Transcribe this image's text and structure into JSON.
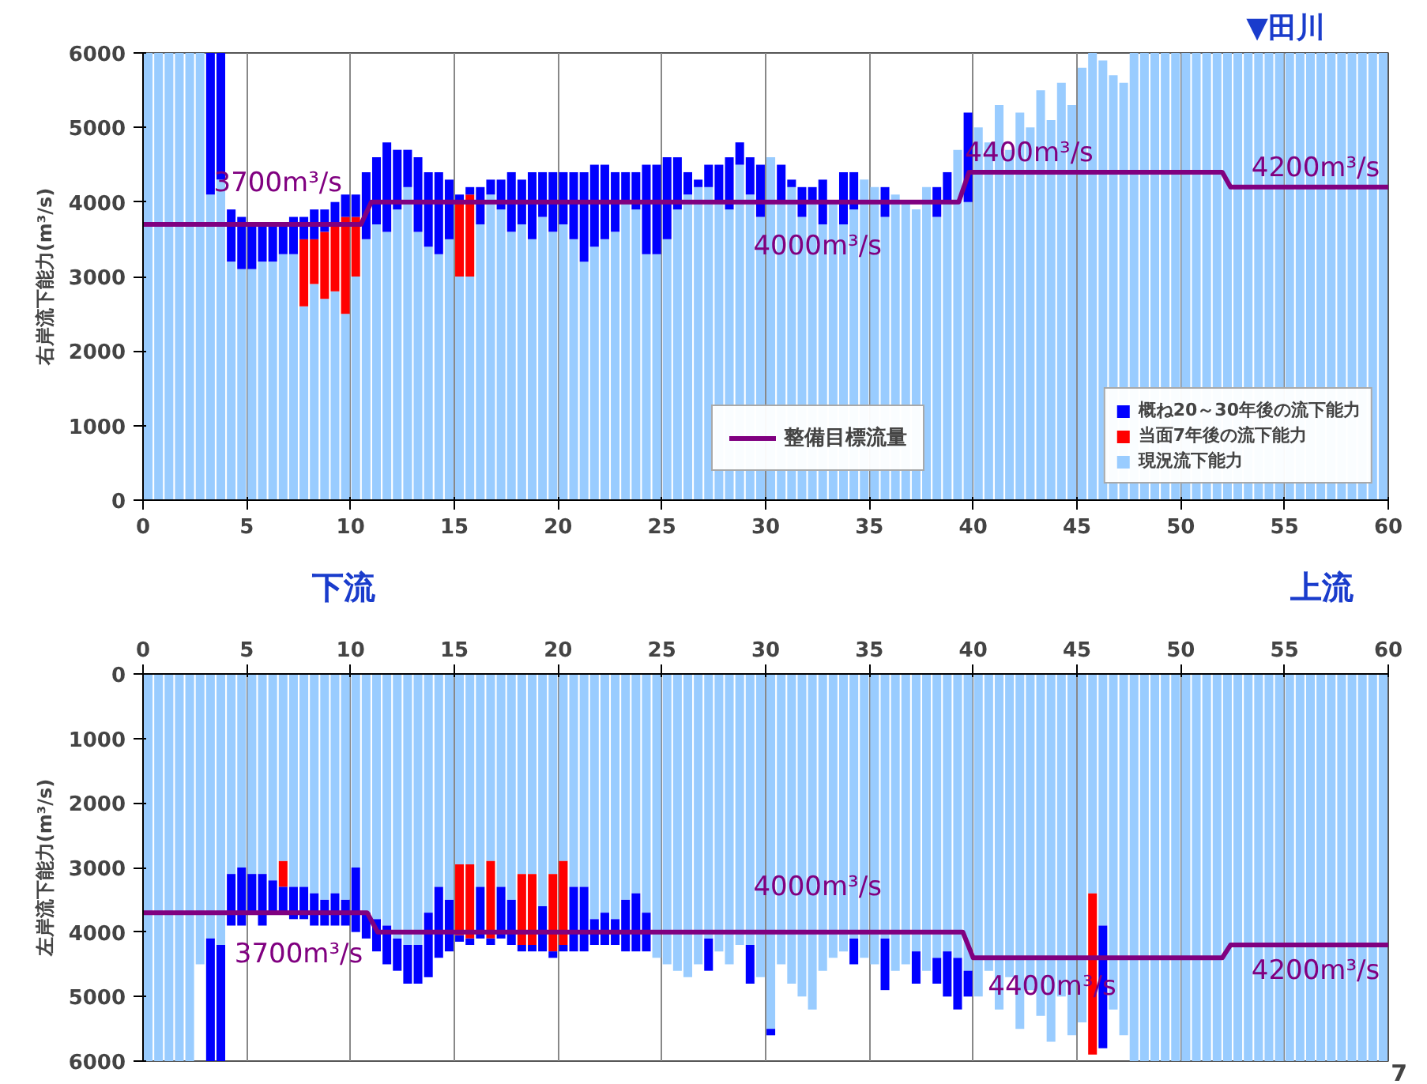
{
  "chart_data": [
    {
      "type": "bar",
      "stacked": true,
      "ylabel": "右岸流下能力(m³/s)",
      "x": [
        0.25,
        0.75,
        1.25,
        1.75,
        2.25,
        2.75,
        3.25,
        3.75,
        4.25,
        4.75,
        5.25,
        5.75,
        6.25,
        6.75,
        7.25,
        7.75,
        8.25,
        8.75,
        9.25,
        9.75,
        10.25,
        10.75,
        11.25,
        11.75,
        12.25,
        12.75,
        13.25,
        13.75,
        14.25,
        14.75,
        15.25,
        15.75,
        16.25,
        16.75,
        17.25,
        17.75,
        18.25,
        18.75,
        19.25,
        19.75,
        20.25,
        20.75,
        21.25,
        21.75,
        22.25,
        22.75,
        23.25,
        23.75,
        24.25,
        24.75,
        25.25,
        25.75,
        26.25,
        26.75,
        27.25,
        27.75,
        28.25,
        28.75,
        29.25,
        29.75,
        30.25,
        30.75,
        31.25,
        31.75,
        32.25,
        32.75,
        33.25,
        33.75,
        34.25,
        34.75,
        35.25,
        35.75,
        36.25,
        36.75,
        37.25,
        37.75,
        38.25,
        38.75,
        39.25,
        39.75,
        40.25,
        40.75,
        41.25,
        41.75,
        42.25,
        42.75,
        43.25,
        43.75,
        44.25,
        44.75,
        45.25,
        45.75,
        46.25,
        46.75,
        47.25,
        47.75,
        48.25,
        48.75,
        49.25,
        49.75,
        50.25,
        50.75,
        51.25,
        51.75,
        52.25,
        52.75,
        53.25,
        53.75,
        54.25,
        54.75,
        55.25,
        55.75,
        56.25,
        56.75,
        57.25,
        57.75,
        58.25,
        58.75,
        59.25,
        59.75
      ],
      "series": [
        {
          "name": "現況流下能力",
          "color": "#99ccff",
          "values": [
            6000,
            6000,
            6000,
            6000,
            6000,
            6000,
            4100,
            4300,
            3200,
            3100,
            3100,
            3200,
            3200,
            3300,
            3300,
            2600,
            2900,
            2700,
            2800,
            2500,
            3000,
            3500,
            3700,
            3600,
            3900,
            4200,
            3600,
            3400,
            3300,
            3500,
            3000,
            3000,
            3700,
            4100,
            3900,
            3600,
            3700,
            3500,
            3800,
            3600,
            3700,
            3500,
            3200,
            3400,
            3500,
            3600,
            4000,
            3900,
            3300,
            3300,
            3500,
            3900,
            4100,
            4200,
            4200,
            4000,
            3900,
            4500,
            4100,
            3800,
            4600,
            4000,
            4200,
            3800,
            4000,
            3700,
            4000,
            3700,
            3900,
            4300,
            4200,
            3800,
            4100,
            4000,
            3900,
            4200,
            3800,
            4000,
            4700,
            4000,
            5000,
            4800,
            5300,
            4700,
            5200,
            5000,
            5500,
            5100,
            5600,
            5300,
            5800,
            6000,
            5900,
            5700,
            5600,
            6000,
            6000,
            6000,
            6000,
            6000,
            6000,
            6000,
            6000,
            6000,
            6000,
            6000,
            6000,
            6000,
            6000,
            6000,
            6000,
            6000,
            6000,
            6000,
            6000,
            6000,
            6000,
            6000,
            6000,
            6000
          ]
        },
        {
          "name": "当面7年後の流下能力",
          "color": "#ff0000",
          "values": [
            0,
            0,
            0,
            0,
            0,
            0,
            0,
            0,
            0,
            0,
            0,
            0,
            0,
            0,
            0,
            900,
            600,
            900,
            900,
            1300,
            800,
            0,
            0,
            0,
            0,
            0,
            0,
            0,
            0,
            0,
            1000,
            1100,
            0,
            0,
            0,
            0,
            0,
            0,
            0,
            0,
            0,
            0,
            0,
            0,
            0,
            0,
            0,
            0,
            0,
            0,
            0,
            0,
            0,
            0,
            0,
            0,
            0,
            0,
            0,
            0,
            0,
            0,
            0,
            0,
            0,
            0,
            0,
            0,
            0,
            0,
            0,
            0,
            0,
            0,
            0,
            0,
            0,
            0,
            0,
            0,
            0,
            0,
            0,
            0,
            0,
            0,
            0,
            0,
            0,
            0,
            0,
            0,
            0,
            0,
            0,
            0,
            0,
            0,
            0,
            0,
            0,
            0,
            0,
            0,
            0,
            0,
            0,
            0,
            0,
            0,
            0,
            0,
            0,
            0,
            0,
            0,
            0,
            0,
            0,
            0
          ]
        },
        {
          "name": "概ね20～30年後の流下能力",
          "color": "#0000ff",
          "values": [
            0,
            0,
            0,
            0,
            0,
            0,
            1900,
            1700,
            700,
            700,
            600,
            500,
            500,
            400,
            500,
            300,
            400,
            300,
            300,
            300,
            300,
            900,
            900,
            1200,
            800,
            500,
            1000,
            1000,
            1100,
            800,
            100,
            100,
            500,
            200,
            400,
            800,
            600,
            900,
            600,
            800,
            700,
            900,
            1200,
            1100,
            1000,
            800,
            400,
            500,
            1200,
            1200,
            1100,
            700,
            300,
            100,
            300,
            500,
            700,
            300,
            500,
            700,
            0,
            500,
            100,
            400,
            200,
            600,
            0,
            700,
            500,
            0,
            0,
            400,
            0,
            0,
            0,
            0,
            400,
            400,
            0,
            1200,
            0,
            0,
            0,
            0,
            0,
            0,
            0,
            0,
            0,
            0,
            0,
            0,
            0,
            0,
            0,
            0,
            0,
            0,
            0,
            0,
            0,
            0,
            0,
            0,
            0,
            0,
            0,
            0,
            0,
            0,
            0,
            0,
            0,
            0,
            0,
            0,
            0,
            0,
            0,
            0
          ]
        },
        {
          "name": "整備目標流量",
          "type": "line",
          "color": "#800080",
          "x": [
            0,
            10.5,
            11,
            39.3,
            39.8,
            52,
            52.4,
            60
          ],
          "values": [
            3700,
            3700,
            4000,
            4000,
            4400,
            4400,
            4200,
            4200
          ]
        }
      ],
      "xlim": [
        0,
        60
      ],
      "ylim": [
        0,
        6000
      ],
      "xticks": [
        0,
        5,
        10,
        15,
        20,
        25,
        30,
        35,
        40,
        45,
        50,
        55,
        60
      ],
      "yticks": [
        0,
        1000,
        2000,
        3000,
        4000,
        5000,
        6000
      ],
      "grid": "x",
      "legend": "bottom right",
      "annotations": [
        "3700m³/s",
        "4000m³/s",
        "4400m³/s",
        "4200m³/s",
        "▼田川",
        "下流",
        "上流"
      ]
    },
    {
      "type": "bar",
      "stacked": true,
      "ylabel": "左岸流下能力(m³/s)",
      "x": [
        0.25,
        0.75,
        1.25,
        1.75,
        2.25,
        2.75,
        3.25,
        3.75,
        4.25,
        4.75,
        5.25,
        5.75,
        6.25,
        6.75,
        7.25,
        7.75,
        8.25,
        8.75,
        9.25,
        9.75,
        10.25,
        10.75,
        11.25,
        11.75,
        12.25,
        12.75,
        13.25,
        13.75,
        14.25,
        14.75,
        15.25,
        15.75,
        16.25,
        16.75,
        17.25,
        17.75,
        18.25,
        18.75,
        19.25,
        19.75,
        20.25,
        20.75,
        21.25,
        21.75,
        22.25,
        22.75,
        23.25,
        23.75,
        24.25,
        24.75,
        25.25,
        25.75,
        26.25,
        26.75,
        27.25,
        27.75,
        28.25,
        28.75,
        29.25,
        29.75,
        30.25,
        30.75,
        31.25,
        31.75,
        32.25,
        32.75,
        33.25,
        33.75,
        34.25,
        34.75,
        35.25,
        35.75,
        36.25,
        36.75,
        37.25,
        37.75,
        38.25,
        38.75,
        39.25,
        39.75,
        40.25,
        40.75,
        41.25,
        41.75,
        42.25,
        42.75,
        43.25,
        43.75,
        44.25,
        44.75,
        45.25,
        45.75,
        46.25,
        46.75,
        47.25,
        47.75,
        48.25,
        48.75,
        49.25,
        49.75,
        50.25,
        50.75,
        51.25,
        51.75,
        52.25,
        52.75,
        53.25,
        53.75,
        54.25,
        54.75,
        55.25,
        55.75,
        56.25,
        56.75,
        57.25,
        57.75,
        58.25,
        58.75,
        59.25,
        59.75
      ],
      "series": [
        {
          "color": "#99ccff",
          "values": [
            6000,
            6000,
            6000,
            6000,
            6000,
            4500,
            4100,
            4200,
            3100,
            3000,
            3100,
            3100,
            3200,
            2900,
            3300,
            3300,
            3400,
            3500,
            3400,
            3500,
            3000,
            3700,
            3800,
            3900,
            4100,
            4200,
            4200,
            3700,
            3300,
            3500,
            2950,
            2950,
            3300,
            2900,
            3300,
            3500,
            3100,
            3100,
            3600,
            3100,
            2900,
            3300,
            3300,
            3800,
            3700,
            3800,
            3500,
            3400,
            3700,
            4400,
            4500,
            4600,
            4700,
            4500,
            4100,
            4300,
            4500,
            4200,
            4200,
            4700,
            5500,
            4500,
            4800,
            5000,
            5200,
            4600,
            4400,
            4300,
            4100,
            4400,
            4500,
            4100,
            4600,
            4500,
            4300,
            4600,
            4400,
            4300,
            4400,
            4600,
            5000,
            4600,
            5200,
            4700,
            5500,
            4900,
            5300,
            5700,
            5000,
            5600,
            5400,
            3400,
            3900,
            5200,
            5600,
            6000,
            6000,
            6000,
            6000,
            6000,
            6000,
            6000,
            6000,
            6000,
            6000,
            6000,
            6000,
            6000,
            6000,
            6000,
            6000,
            6000,
            6000,
            6000,
            6000,
            6000,
            6000,
            6000,
            6000,
            6000
          ]
        },
        {
          "color": "#ff0000",
          "values": [
            0,
            0,
            0,
            0,
            0,
            0,
            0,
            0,
            0,
            0,
            0,
            0,
            0,
            400,
            0,
            0,
            0,
            0,
            0,
            0,
            0,
            0,
            0,
            0,
            0,
            0,
            0,
            0,
            0,
            0,
            1100,
            1150,
            0,
            1200,
            0,
            0,
            1100,
            1100,
            0,
            1200,
            1300,
            0,
            0,
            0,
            0,
            0,
            0,
            0,
            0,
            0,
            0,
            0,
            0,
            0,
            0,
            0,
            0,
            0,
            0,
            0,
            0,
            0,
            0,
            0,
            0,
            0,
            0,
            0,
            0,
            0,
            0,
            0,
            0,
            0,
            0,
            0,
            0,
            0,
            0,
            0,
            0,
            0,
            0,
            0,
            0,
            0,
            0,
            0,
            0,
            0,
            0,
            2500,
            0,
            0,
            0,
            0,
            0,
            0,
            0,
            0,
            0,
            0,
            0,
            0,
            0,
            0,
            0,
            0,
            0,
            0,
            0,
            0,
            0,
            0,
            0,
            0,
            0,
            0,
            0,
            0
          ]
        },
        {
          "color": "#0000ff",
          "values": [
            0,
            0,
            0,
            0,
            0,
            0,
            1900,
            1800,
            800,
            900,
            600,
            800,
            500,
            400,
            500,
            500,
            500,
            400,
            500,
            400,
            1000,
            400,
            500,
            600,
            500,
            600,
            600,
            1000,
            1100,
            800,
            100,
            100,
            800,
            100,
            800,
            700,
            100,
            100,
            700,
            100,
            100,
            1000,
            1000,
            400,
            500,
            400,
            800,
            900,
            600,
            0,
            0,
            0,
            0,
            0,
            500,
            0,
            0,
            0,
            600,
            0,
            100,
            0,
            0,
            0,
            0,
            0,
            0,
            0,
            400,
            0,
            0,
            800,
            0,
            0,
            500,
            0,
            400,
            700,
            800,
            400,
            0,
            0,
            0,
            0,
            0,
            0,
            0,
            0,
            0,
            0,
            0,
            0,
            1900,
            0,
            0,
            0,
            0,
            0,
            0,
            0,
            0,
            0,
            0,
            0,
            0,
            0,
            0,
            0,
            0,
            0,
            0,
            0,
            0,
            0,
            0,
            0,
            0,
            0,
            0,
            0
          ]
        },
        {
          "type": "line",
          "color": "#800080",
          "x": [
            0,
            10.8,
            11.3,
            39.5,
            40,
            52,
            52.4,
            60
          ],
          "values": [
            3700,
            3700,
            4000,
            4000,
            4400,
            4400,
            4200,
            4200
          ]
        }
      ],
      "xlim": [
        0,
        60
      ],
      "ylim": [
        6000,
        0
      ],
      "xticks": [
        0,
        5,
        10,
        15,
        20,
        25,
        30,
        35,
        40,
        45,
        50,
        55,
        60
      ],
      "yticks": [
        0,
        1000,
        2000,
        3000,
        4000,
        5000,
        6000
      ],
      "grid": "x",
      "annotations": [
        "3700m³/s",
        "4000m³/s",
        "4400m³/s",
        "4200m³/s",
        "7"
      ]
    }
  ]
}
